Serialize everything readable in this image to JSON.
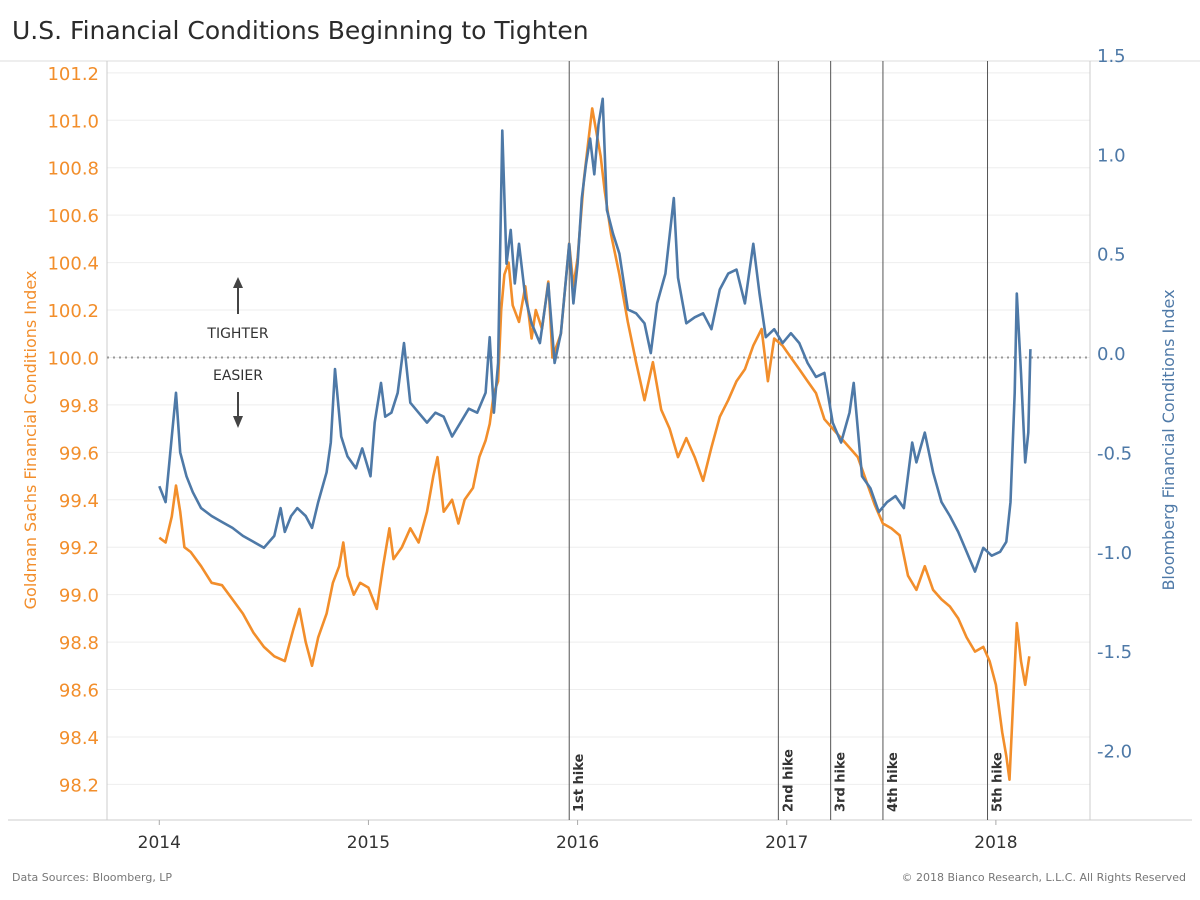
{
  "chart_data": {
    "type": "line",
    "title": "U.S. Financial Conditions Beginning to Tighten",
    "x_ticks": [
      "2014",
      "2015",
      "2016",
      "2017",
      "2018"
    ],
    "x_range": [
      2013.75,
      2018.45
    ],
    "left_axis": {
      "label": "Goldman Sachs Financial Conditions Index",
      "range": [
        98.05,
        101.25
      ],
      "ticks": [
        "101.2",
        "101.0",
        "100.8",
        "100.6",
        "100.4",
        "100.2",
        "100.0",
        "99.8",
        "99.6",
        "99.4",
        "99.2",
        "99.0",
        "98.8",
        "98.6",
        "98.4",
        "98.2"
      ],
      "color": "#f28e2b"
    },
    "right_axis": {
      "label": "Bloomberg Financial Conditions Index",
      "range": [
        -2.35,
        1.47
      ],
      "ticks": [
        "1.5",
        "1.0",
        "0.5",
        "0.0",
        "-0.5",
        "-1.0",
        "-1.5",
        "-2.0"
      ],
      "color": "#4e79a7"
    },
    "annotations": {
      "tighter": "TIGHTER",
      "easier": "EASIER",
      "reference_line": 100.0
    },
    "rate_hikes": [
      {
        "label": "1st hike",
        "x": 2015.96
      },
      {
        "label": "2nd hike",
        "x": 2016.96
      },
      {
        "label": "3rd hike",
        "x": 2017.21
      },
      {
        "label": "4th hike",
        "x": 2017.46
      },
      {
        "label": "5th hike",
        "x": 2017.96
      }
    ],
    "series": [
      {
        "name": "Goldman Sachs Financial Conditions Index",
        "axis": "left",
        "color": "#f28e2b",
        "points": [
          [
            2014.0,
            99.24
          ],
          [
            2014.03,
            99.22
          ],
          [
            2014.06,
            99.33
          ],
          [
            2014.08,
            99.46
          ],
          [
            2014.1,
            99.35
          ],
          [
            2014.12,
            99.2
          ],
          [
            2014.15,
            99.18
          ],
          [
            2014.2,
            99.12
          ],
          [
            2014.25,
            99.05
          ],
          [
            2014.3,
            99.04
          ],
          [
            2014.35,
            98.98
          ],
          [
            2014.4,
            98.92
          ],
          [
            2014.45,
            98.84
          ],
          [
            2014.5,
            98.78
          ],
          [
            2014.55,
            98.74
          ],
          [
            2014.6,
            98.72
          ],
          [
            2014.64,
            98.85
          ],
          [
            2014.67,
            98.94
          ],
          [
            2014.7,
            98.8
          ],
          [
            2014.73,
            98.7
          ],
          [
            2014.76,
            98.82
          ],
          [
            2014.8,
            98.92
          ],
          [
            2014.83,
            99.05
          ],
          [
            2014.86,
            99.12
          ],
          [
            2014.88,
            99.22
          ],
          [
            2014.9,
            99.08
          ],
          [
            2014.93,
            99.0
          ],
          [
            2014.96,
            99.05
          ],
          [
            2015.0,
            99.03
          ],
          [
            2015.04,
            98.94
          ],
          [
            2015.07,
            99.12
          ],
          [
            2015.1,
            99.28
          ],
          [
            2015.12,
            99.15
          ],
          [
            2015.16,
            99.2
          ],
          [
            2015.2,
            99.28
          ],
          [
            2015.24,
            99.22
          ],
          [
            2015.28,
            99.35
          ],
          [
            2015.31,
            99.5
          ],
          [
            2015.33,
            99.58
          ],
          [
            2015.36,
            99.35
          ],
          [
            2015.4,
            99.4
          ],
          [
            2015.43,
            99.3
          ],
          [
            2015.46,
            99.4
          ],
          [
            2015.5,
            99.45
          ],
          [
            2015.53,
            99.58
          ],
          [
            2015.56,
            99.65
          ],
          [
            2015.58,
            99.72
          ],
          [
            2015.6,
            99.85
          ],
          [
            2015.62,
            99.9
          ],
          [
            2015.635,
            100.2
          ],
          [
            2015.65,
            100.35
          ],
          [
            2015.67,
            100.4
          ],
          [
            2015.69,
            100.22
          ],
          [
            2015.72,
            100.15
          ],
          [
            2015.75,
            100.3
          ],
          [
            2015.78,
            100.08
          ],
          [
            2015.8,
            100.2
          ],
          [
            2015.83,
            100.12
          ],
          [
            2015.86,
            100.32
          ],
          [
            2015.88,
            100.0
          ],
          [
            2015.92,
            100.1
          ],
          [
            2015.96,
            100.48
          ],
          [
            2015.98,
            100.3
          ],
          [
            2016.0,
            100.42
          ],
          [
            2016.03,
            100.75
          ],
          [
            2016.05,
            100.9
          ],
          [
            2016.07,
            101.05
          ],
          [
            2016.09,
            100.95
          ],
          [
            2016.11,
            100.85
          ],
          [
            2016.13,
            100.7
          ],
          [
            2016.16,
            100.52
          ],
          [
            2016.2,
            100.35
          ],
          [
            2016.24,
            100.15
          ],
          [
            2016.28,
            99.98
          ],
          [
            2016.32,
            99.82
          ],
          [
            2016.36,
            99.98
          ],
          [
            2016.4,
            99.78
          ],
          [
            2016.44,
            99.7
          ],
          [
            2016.48,
            99.58
          ],
          [
            2016.52,
            99.66
          ],
          [
            2016.56,
            99.58
          ],
          [
            2016.6,
            99.48
          ],
          [
            2016.64,
            99.62
          ],
          [
            2016.68,
            99.75
          ],
          [
            2016.72,
            99.82
          ],
          [
            2016.76,
            99.9
          ],
          [
            2016.8,
            99.95
          ],
          [
            2016.84,
            100.05
          ],
          [
            2016.88,
            100.12
          ],
          [
            2016.91,
            99.9
          ],
          [
            2016.94,
            100.08
          ],
          [
            2016.98,
            100.05
          ],
          [
            2017.02,
            100.0
          ],
          [
            2017.06,
            99.95
          ],
          [
            2017.1,
            99.9
          ],
          [
            2017.14,
            99.85
          ],
          [
            2017.18,
            99.74
          ],
          [
            2017.22,
            99.7
          ],
          [
            2017.26,
            99.66
          ],
          [
            2017.3,
            99.62
          ],
          [
            2017.34,
            99.58
          ],
          [
            2017.38,
            99.48
          ],
          [
            2017.42,
            99.38
          ],
          [
            2017.46,
            99.3
          ],
          [
            2017.5,
            99.28
          ],
          [
            2017.54,
            99.25
          ],
          [
            2017.58,
            99.08
          ],
          [
            2017.62,
            99.02
          ],
          [
            2017.66,
            99.12
          ],
          [
            2017.7,
            99.02
          ],
          [
            2017.74,
            98.98
          ],
          [
            2017.78,
            98.95
          ],
          [
            2017.82,
            98.9
          ],
          [
            2017.86,
            98.82
          ],
          [
            2017.9,
            98.76
          ],
          [
            2017.94,
            98.78
          ],
          [
            2017.97,
            98.72
          ],
          [
            2018.0,
            98.62
          ],
          [
            2018.03,
            98.42
          ],
          [
            2018.05,
            98.32
          ],
          [
            2018.065,
            98.22
          ],
          [
            2018.08,
            98.5
          ],
          [
            2018.1,
            98.88
          ],
          [
            2018.12,
            98.72
          ],
          [
            2018.14,
            98.62
          ],
          [
            2018.16,
            98.74
          ]
        ]
      },
      {
        "name": "Bloomberg Financial Conditions Index",
        "axis": "right",
        "color": "#4e79a7",
        "points": [
          [
            2014.0,
            -0.67
          ],
          [
            2014.03,
            -0.75
          ],
          [
            2014.06,
            -0.42
          ],
          [
            2014.08,
            -0.2
          ],
          [
            2014.1,
            -0.5
          ],
          [
            2014.13,
            -0.62
          ],
          [
            2014.16,
            -0.7
          ],
          [
            2014.2,
            -0.78
          ],
          [
            2014.25,
            -0.82
          ],
          [
            2014.3,
            -0.85
          ],
          [
            2014.35,
            -0.88
          ],
          [
            2014.4,
            -0.92
          ],
          [
            2014.45,
            -0.95
          ],
          [
            2014.5,
            -0.98
          ],
          [
            2014.55,
            -0.92
          ],
          [
            2014.58,
            -0.78
          ],
          [
            2014.6,
            -0.9
          ],
          [
            2014.63,
            -0.82
          ],
          [
            2014.66,
            -0.78
          ],
          [
            2014.7,
            -0.82
          ],
          [
            2014.73,
            -0.88
          ],
          [
            2014.76,
            -0.75
          ],
          [
            2014.8,
            -0.6
          ],
          [
            2014.82,
            -0.45
          ],
          [
            2014.84,
            -0.08
          ],
          [
            2014.87,
            -0.42
          ],
          [
            2014.9,
            -0.52
          ],
          [
            2014.94,
            -0.58
          ],
          [
            2014.97,
            -0.48
          ],
          [
            2015.01,
            -0.62
          ],
          [
            2015.03,
            -0.35
          ],
          [
            2015.06,
            -0.15
          ],
          [
            2015.08,
            -0.32
          ],
          [
            2015.11,
            -0.3
          ],
          [
            2015.14,
            -0.2
          ],
          [
            2015.17,
            0.05
          ],
          [
            2015.2,
            -0.25
          ],
          [
            2015.24,
            -0.3
          ],
          [
            2015.28,
            -0.35
          ],
          [
            2015.32,
            -0.3
          ],
          [
            2015.36,
            -0.32
          ],
          [
            2015.4,
            -0.42
          ],
          [
            2015.44,
            -0.35
          ],
          [
            2015.48,
            -0.28
          ],
          [
            2015.52,
            -0.3
          ],
          [
            2015.56,
            -0.2
          ],
          [
            2015.58,
            0.08
          ],
          [
            2015.6,
            -0.3
          ],
          [
            2015.62,
            -0.05
          ],
          [
            2015.64,
            1.12
          ],
          [
            2015.66,
            0.45
          ],
          [
            2015.68,
            0.62
          ],
          [
            2015.7,
            0.35
          ],
          [
            2015.72,
            0.55
          ],
          [
            2015.75,
            0.28
          ],
          [
            2015.78,
            0.15
          ],
          [
            2015.82,
            0.05
          ],
          [
            2015.86,
            0.35
          ],
          [
            2015.89,
            -0.05
          ],
          [
            2015.92,
            0.1
          ],
          [
            2015.96,
            0.55
          ],
          [
            2015.98,
            0.25
          ],
          [
            2016.0,
            0.45
          ],
          [
            2016.02,
            0.78
          ],
          [
            2016.04,
            0.95
          ],
          [
            2016.06,
            1.08
          ],
          [
            2016.08,
            0.9
          ],
          [
            2016.1,
            1.15
          ],
          [
            2016.12,
            1.28
          ],
          [
            2016.14,
            0.72
          ],
          [
            2016.17,
            0.6
          ],
          [
            2016.2,
            0.5
          ],
          [
            2016.24,
            0.22
          ],
          [
            2016.28,
            0.2
          ],
          [
            2016.32,
            0.15
          ],
          [
            2016.35,
            0.0
          ],
          [
            2016.38,
            0.25
          ],
          [
            2016.42,
            0.4
          ],
          [
            2016.46,
            0.78
          ],
          [
            2016.48,
            0.38
          ],
          [
            2016.52,
            0.15
          ],
          [
            2016.56,
            0.18
          ],
          [
            2016.6,
            0.2
          ],
          [
            2016.64,
            0.12
          ],
          [
            2016.68,
            0.32
          ],
          [
            2016.72,
            0.4
          ],
          [
            2016.76,
            0.42
          ],
          [
            2016.8,
            0.25
          ],
          [
            2016.84,
            0.55
          ],
          [
            2016.87,
            0.3
          ],
          [
            2016.9,
            0.08
          ],
          [
            2016.94,
            0.12
          ],
          [
            2016.98,
            0.05
          ],
          [
            2017.02,
            0.1
          ],
          [
            2017.06,
            0.05
          ],
          [
            2017.1,
            -0.05
          ],
          [
            2017.14,
            -0.12
          ],
          [
            2017.18,
            -0.1
          ],
          [
            2017.22,
            -0.35
          ],
          [
            2017.26,
            -0.45
          ],
          [
            2017.3,
            -0.3
          ],
          [
            2017.32,
            -0.15
          ],
          [
            2017.36,
            -0.62
          ],
          [
            2017.4,
            -0.68
          ],
          [
            2017.44,
            -0.8
          ],
          [
            2017.48,
            -0.75
          ],
          [
            2017.52,
            -0.72
          ],
          [
            2017.56,
            -0.78
          ],
          [
            2017.6,
            -0.45
          ],
          [
            2017.62,
            -0.55
          ],
          [
            2017.66,
            -0.4
          ],
          [
            2017.7,
            -0.6
          ],
          [
            2017.74,
            -0.75
          ],
          [
            2017.78,
            -0.82
          ],
          [
            2017.82,
            -0.9
          ],
          [
            2017.86,
            -1.0
          ],
          [
            2017.88,
            -1.05
          ],
          [
            2017.9,
            -1.1
          ],
          [
            2017.94,
            -0.98
          ],
          [
            2017.98,
            -1.02
          ],
          [
            2018.02,
            -1.0
          ],
          [
            2018.05,
            -0.95
          ],
          [
            2018.07,
            -0.75
          ],
          [
            2018.09,
            -0.2
          ],
          [
            2018.1,
            0.3
          ],
          [
            2018.12,
            -0.1
          ],
          [
            2018.14,
            -0.55
          ],
          [
            2018.155,
            -0.4
          ],
          [
            2018.165,
            0.02
          ]
        ]
      }
    ]
  },
  "footer": {
    "source": "Data Sources: Bloomberg, LP",
    "copyright": "© 2018 Bianco Research, L.L.C. All Rights Reserved"
  }
}
